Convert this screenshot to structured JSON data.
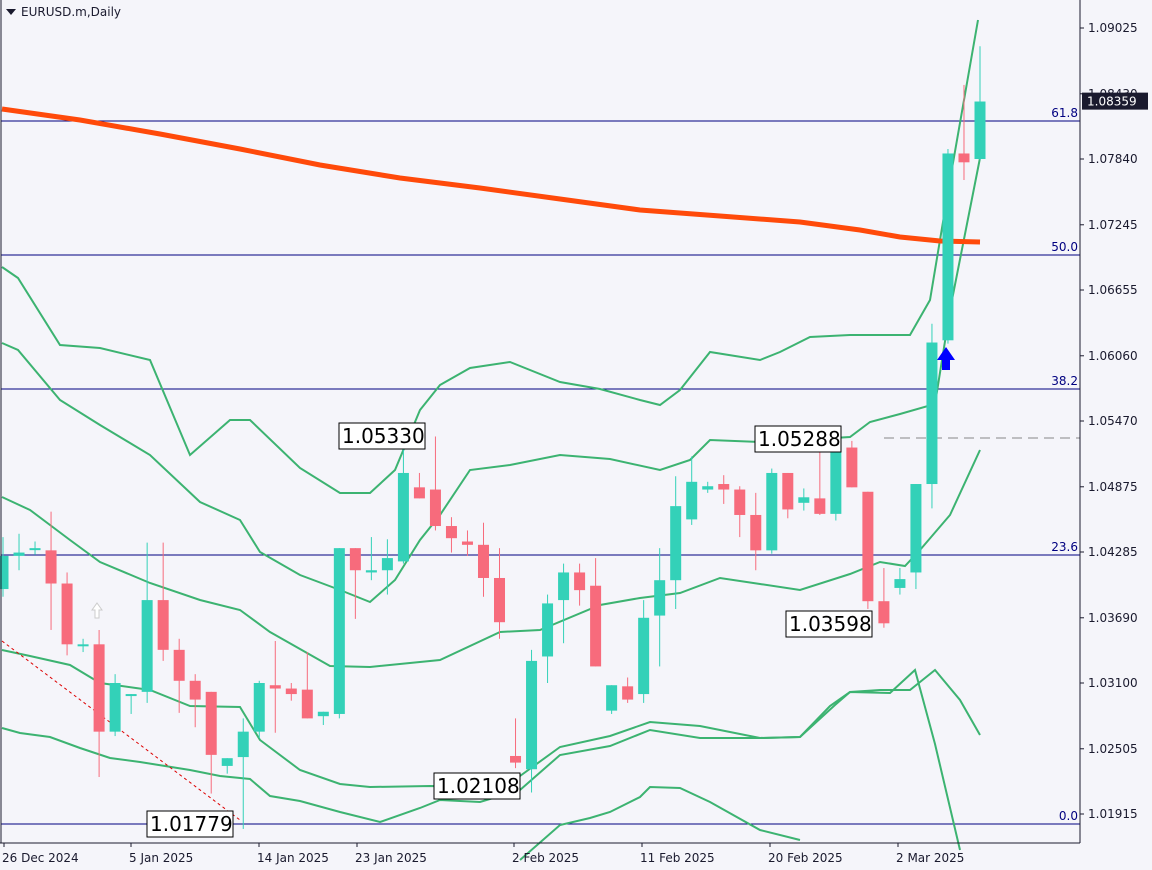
{
  "window": {
    "title": "EURUSD.m,Daily",
    "symbol": "EURUSD.m",
    "timeframe": "Daily"
  },
  "price_axis": {
    "ticks": [
      "1.09025",
      "1.08430",
      "1.07840",
      "1.07245",
      "1.06655",
      "1.06060",
      "1.05470",
      "1.04875",
      "1.04285",
      "1.03690",
      "1.03100",
      "1.02505",
      "1.01915"
    ],
    "current_price": "1.08359",
    "current_price_bg": "#1a1a2e"
  },
  "time_axis": {
    "ticks": [
      "26 Dec 2024",
      "5 Jan 2025",
      "14 Jan 2025",
      "23 Jan 2025",
      "2 Feb 2025",
      "11 Feb 2025",
      "20 Feb 2025",
      "2 Mar 2025"
    ]
  },
  "fibonacci": {
    "levels": [
      {
        "label": "61.8",
        "price": 1.08165
      },
      {
        "label": "50.0",
        "price": 1.06963
      },
      {
        "label": "38.2",
        "price": 1.0576
      },
      {
        "label": "23.6",
        "price": 1.0427
      },
      {
        "label": "0.0",
        "price": 1.01779
      }
    ],
    "color": "#000080"
  },
  "annotations": [
    {
      "label": "1.05330",
      "price": 1.0533
    },
    {
      "label": "1.05288",
      "price": 1.05288
    },
    {
      "label": "1.03598",
      "price": 1.03598
    },
    {
      "label": "1.02108",
      "price": 1.02108
    },
    {
      "label": "1.01779",
      "price": 1.01779
    }
  ],
  "colors": {
    "bull": "#33d1b8",
    "bear": "#f76b7c",
    "ma": "#ff4a0a",
    "bands": "#3cb371",
    "background": "#f5f5fa",
    "axis": "#1a1a2e",
    "signal_arrow": "#0000ff"
  },
  "chart_data": {
    "type": "candlestick",
    "title": "EURUSD.m,Daily",
    "xlabel": "",
    "ylabel": "",
    "ylim": [
      1.015,
      1.0925
    ],
    "grid": false,
    "indicators": [
      "Moving Average (thick orange)",
      "Bollinger Bands (green, multiple deviations)",
      "Fibonacci retracement 0.0–61.8"
    ],
    "resistance_dashed_line": 1.053,
    "candles": [
      {
        "o": 1.0395,
        "h": 1.0442,
        "l": 1.0388,
        "c": 1.0425
      },
      {
        "o": 1.0425,
        "h": 1.0445,
        "l": 1.0412,
        "c": 1.0428
      },
      {
        "o": 1.0432,
        "h": 1.0438,
        "l": 1.0426,
        "c": 1.0432
      },
      {
        "o": 1.043,
        "h": 1.0465,
        "l": 1.0358,
        "c": 1.04
      },
      {
        "o": 1.04,
        "h": 1.041,
        "l": 1.0335,
        "c": 1.0345
      },
      {
        "o": 1.0345,
        "h": 1.035,
        "l": 1.0338,
        "c": 1.0345
      },
      {
        "o": 1.0345,
        "h": 1.0358,
        "l": 1.0225,
        "c": 1.0266
      },
      {
        "o": 1.0266,
        "h": 1.0318,
        "l": 1.0262,
        "c": 1.031
      },
      {
        "o": 1.03,
        "h": 1.03,
        "l": 1.0282,
        "c": 1.03
      },
      {
        "o": 1.0302,
        "h": 1.0437,
        "l": 1.0292,
        "c": 1.0385
      },
      {
        "o": 1.0385,
        "h": 1.0437,
        "l": 1.033,
        "c": 1.034
      },
      {
        "o": 1.034,
        "h": 1.035,
        "l": 1.0283,
        "c": 1.0312
      },
      {
        "o": 1.0312,
        "h": 1.0318,
        "l": 1.027,
        "c": 1.0295
      },
      {
        "o": 1.0302,
        "h": 1.03,
        "l": 1.021,
        "c": 1.0245
      },
      {
        "o": 1.0235,
        "h": 1.0242,
        "l": 1.0228,
        "c": 1.0242
      },
      {
        "o": 1.0243,
        "h": 1.0278,
        "l": 1.0178,
        "c": 1.0266
      },
      {
        "o": 1.0266,
        "h": 1.0312,
        "l": 1.026,
        "c": 1.031
      },
      {
        "o": 1.0308,
        "h": 1.0348,
        "l": 1.0265,
        "c": 1.0305
      },
      {
        "o": 1.0305,
        "h": 1.031,
        "l": 1.0294,
        "c": 1.03
      },
      {
        "o": 1.0304,
        "h": 1.0338,
        "l": 1.0278,
        "c": 1.0278
      },
      {
        "o": 1.028,
        "h": 1.0283,
        "l": 1.0272,
        "c": 1.0284
      },
      {
        "o": 1.0282,
        "h": 1.0432,
        "l": 1.0278,
        "c": 1.0432
      },
      {
        "o": 1.0432,
        "h": 1.0432,
        "l": 1.0368,
        "c": 1.0412
      },
      {
        "o": 1.041,
        "h": 1.0442,
        "l": 1.0403,
        "c": 1.0412
      },
      {
        "o": 1.0412,
        "h": 1.044,
        "l": 1.039,
        "c": 1.0423
      },
      {
        "o": 1.042,
        "h": 1.0533,
        "l": 1.0418,
        "c": 1.05
      },
      {
        "o": 1.0487,
        "h": 1.05,
        "l": 1.0477,
        "c": 1.0477
      },
      {
        "o": 1.0485,
        "h": 1.0533,
        "l": 1.0448,
        "c": 1.0452
      },
      {
        "o": 1.0452,
        "h": 1.046,
        "l": 1.0428,
        "c": 1.0441
      },
      {
        "o": 1.0438,
        "h": 1.0448,
        "l": 1.0425,
        "c": 1.0435
      },
      {
        "o": 1.0435,
        "h": 1.0455,
        "l": 1.0388,
        "c": 1.0405
      },
      {
        "o": 1.0405,
        "h": 1.0432,
        "l": 1.035,
        "c": 1.0365
      },
      {
        "o": 1.0244,
        "h": 1.0278,
        "l": 1.0233,
        "c": 1.0238
      },
      {
        "o": 1.0232,
        "h": 1.034,
        "l": 1.0211,
        "c": 1.033
      },
      {
        "o": 1.0334,
        "h": 1.039,
        "l": 1.031,
        "c": 1.0382
      },
      {
        "o": 1.0385,
        "h": 1.0418,
        "l": 1.0346,
        "c": 1.041
      },
      {
        "o": 1.041,
        "h": 1.0418,
        "l": 1.038,
        "c": 1.0394
      },
      {
        "o": 1.0398,
        "h": 1.0423,
        "l": 1.0353,
        "c": 1.0325
      },
      {
        "o": 1.0285,
        "h": 1.0308,
        "l": 1.0282,
        "c": 1.0308
      },
      {
        "o": 1.0307,
        "h": 1.0315,
        "l": 1.0292,
        "c": 1.0295
      },
      {
        "o": 1.03,
        "h": 1.0385,
        "l": 1.0292,
        "c": 1.0369
      },
      {
        "o": 1.0371,
        "h": 1.0432,
        "l": 1.0325,
        "c": 1.0403
      },
      {
        "o": 1.0403,
        "h": 1.0497,
        "l": 1.0377,
        "c": 1.047
      },
      {
        "o": 1.0458,
        "h": 1.0515,
        "l": 1.0453,
        "c": 1.0492
      },
      {
        "o": 1.0485,
        "h": 1.0492,
        "l": 1.0482,
        "c": 1.0488
      },
      {
        "o": 1.049,
        "h": 1.0498,
        "l": 1.0472,
        "c": 1.0485
      },
      {
        "o": 1.0485,
        "h": 1.0488,
        "l": 1.0442,
        "c": 1.0462
      },
      {
        "o": 1.0462,
        "h": 1.0482,
        "l": 1.0412,
        "c": 1.043
      },
      {
        "o": 1.043,
        "h": 1.0504,
        "l": 1.0427,
        "c": 1.05
      },
      {
        "o": 1.05,
        "h": 1.0492,
        "l": 1.0459,
        "c": 1.0467
      },
      {
        "o": 1.0473,
        "h": 1.0486,
        "l": 1.0466,
        "c": 1.0478
      },
      {
        "o": 1.0477,
        "h": 1.0529,
        "l": 1.0462,
        "c": 1.0463
      },
      {
        "o": 1.0463,
        "h": 1.0529,
        "l": 1.0457,
        "c": 1.0525
      },
      {
        "o": 1.0523,
        "h": 1.0529,
        "l": 1.0488,
        "c": 1.0487
      },
      {
        "o": 1.0483,
        "h": 1.048,
        "l": 1.0377,
        "c": 1.0384
      },
      {
        "o": 1.0384,
        "h": 1.0414,
        "l": 1.036,
        "c": 1.0364
      },
      {
        "o": 1.0396,
        "h": 1.0414,
        "l": 1.039,
        "c": 1.0404
      },
      {
        "o": 1.041,
        "h": 1.049,
        "l": 1.0395,
        "c": 1.049
      },
      {
        "o": 1.049,
        "h": 1.0635,
        "l": 1.0468,
        "c": 1.0618
      },
      {
        "o": 1.062,
        "h": 1.0793,
        "l": 1.0617,
        "c": 1.0789
      },
      {
        "o": 1.0789,
        "h": 1.0851,
        "l": 1.0765,
        "c": 1.0781
      },
      {
        "o": 1.0784,
        "h": 1.0886,
        "l": 1.0783,
        "c": 1.0836
      }
    ]
  }
}
